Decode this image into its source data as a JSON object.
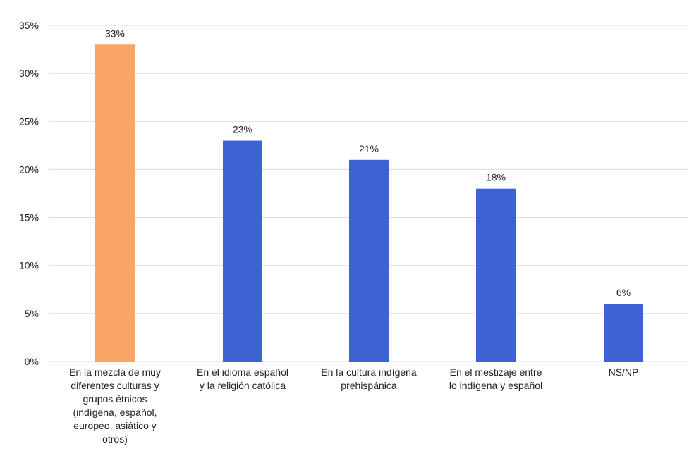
{
  "chart_data": {
    "type": "bar",
    "title": "",
    "xlabel": "",
    "ylabel": "",
    "ylim": [
      0,
      35
    ],
    "yticks": [
      0,
      5,
      10,
      15,
      20,
      25,
      30,
      35
    ],
    "ytick_labels": [
      "0%",
      "5%",
      "10%",
      "15%",
      "20%",
      "25%",
      "30%",
      "35%"
    ],
    "grid": true,
    "categories": [
      [
        "En la mezcla de muy",
        "diferentes culturas y",
        "grupos étnicos",
        "(indígena, español,",
        "europeo, asiático y",
        "otros)"
      ],
      [
        "En el idioma español",
        "y la religión católica"
      ],
      [
        "En la cultura indígena",
        "prehispánica"
      ],
      [
        "En el mestizaje entre",
        "lo indígena y español"
      ],
      [
        "NS/NP"
      ]
    ],
    "values": [
      33,
      23,
      21,
      18,
      6
    ],
    "value_labels": [
      "33%",
      "23%",
      "21%",
      "18%",
      "6%"
    ],
    "colors": [
      "#f8a567",
      "#3d63d2",
      "#3d63d2",
      "#3d63d2",
      "#3d63d2"
    ]
  }
}
